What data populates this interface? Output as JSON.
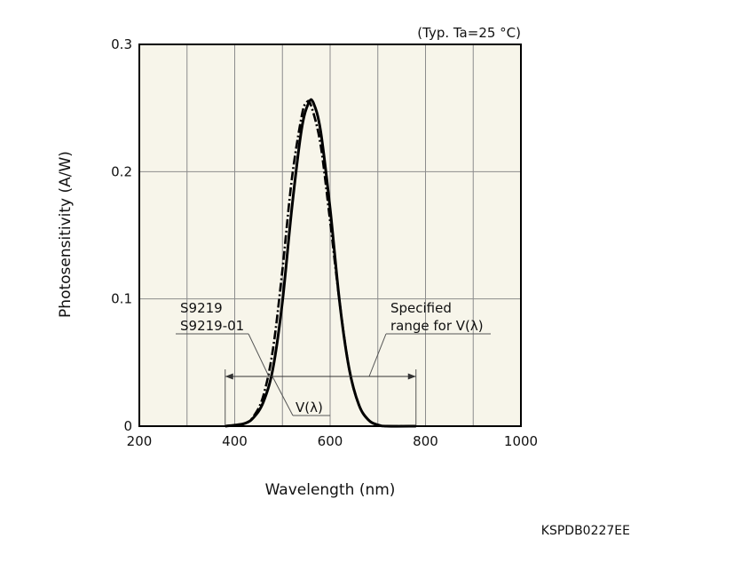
{
  "chart_data": {
    "type": "line",
    "condition": "(Typ. Ta=25 °C)",
    "xlabel": "Wavelength (nm)",
    "ylabel": "Photosensitivity (A/W)",
    "xlim": [
      200,
      1000
    ],
    "ylim": [
      0,
      0.3
    ],
    "x_ticks": [
      200,
      300,
      400,
      500,
      600,
      700,
      800,
      900,
      1000
    ],
    "x_tick_labels": [
      "200",
      "",
      "400",
      "",
      "600",
      "",
      "800",
      "",
      "1000"
    ],
    "y_ticks": [
      0,
      0.1,
      0.2,
      0.3
    ],
    "y_tick_labels": [
      "0",
      "0.1",
      "0.2",
      "0.3"
    ],
    "grid": true,
    "series": [
      {
        "name": "S9219\nS9219-01",
        "style": "solid",
        "x": [
          380,
          420,
          440,
          460,
          480,
          500,
          520,
          540,
          555,
          565,
          580,
          600,
          620,
          640,
          660,
          680,
          700,
          720,
          780
        ],
        "y": [
          0,
          0.002,
          0.007,
          0.019,
          0.045,
          0.098,
          0.172,
          0.233,
          0.254,
          0.254,
          0.232,
          0.171,
          0.097,
          0.045,
          0.017,
          0.005,
          0.001,
          0,
          0
        ]
      },
      {
        "name": "V(λ)",
        "style": "dashdot",
        "x": [
          380,
          420,
          440,
          460,
          480,
          500,
          520,
          540,
          550,
          560,
          580,
          600,
          620,
          640,
          660,
          680,
          700,
          720,
          780
        ],
        "y": [
          0,
          0.002,
          0.008,
          0.024,
          0.06,
          0.123,
          0.195,
          0.243,
          0.254,
          0.252,
          0.221,
          0.161,
          0.097,
          0.045,
          0.017,
          0.005,
          0.001,
          0,
          0
        ]
      }
    ],
    "annotations": [
      {
        "label": "S9219\nS9219-01"
      },
      {
        "label": "V(λ)"
      },
      {
        "label": "Specified\nrange for V(λ)",
        "range": [
          380,
          780
        ]
      }
    ]
  },
  "figure_code": "KSPDB0227EE"
}
